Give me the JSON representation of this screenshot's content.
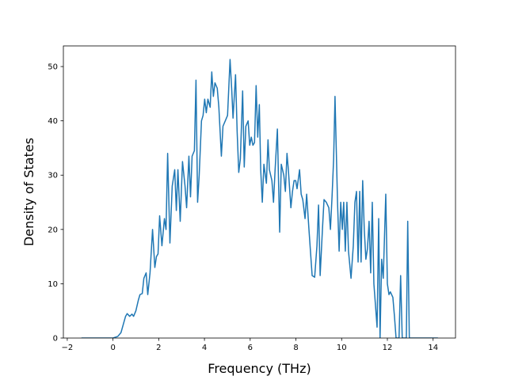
{
  "chart_data": {
    "type": "line",
    "xlabel": "Frequency (THz)",
    "ylabel": "Density of States",
    "xlim": [
      -2.17,
      14.98
    ],
    "ylim": [
      0,
      53.8
    ],
    "xticks": [
      {
        "value": -2,
        "label": "−2"
      },
      0,
      2,
      4,
      6,
      8,
      10,
      12,
      14
    ],
    "yticks": [
      0,
      10,
      20,
      30,
      40,
      50
    ],
    "grid": false,
    "series": [
      {
        "color": "#1f77b4",
        "x": [
          -1.38,
          0,
          0.21,
          0.35,
          0.45,
          0.55,
          0.62,
          0.73,
          0.83,
          0.9,
          1.0,
          1.11,
          1.18,
          1.28,
          1.35,
          1.45,
          1.52,
          1.62,
          1.73,
          1.83,
          1.9,
          1.97,
          2.04,
          2.14,
          2.25,
          2.32,
          2.39,
          2.49,
          2.59,
          2.7,
          2.77,
          2.84,
          2.94,
          3.04,
          3.15,
          3.22,
          3.32,
          3.39,
          3.46,
          3.56,
          3.63,
          3.7,
          3.77,
          3.87,
          3.94,
          4.01,
          4.08,
          4.15,
          4.25,
          4.32,
          4.39,
          4.46,
          4.56,
          4.63,
          4.74,
          4.81,
          4.91,
          5.01,
          5.12,
          5.19,
          5.25,
          5.36,
          5.43,
          5.5,
          5.57,
          5.67,
          5.74,
          5.81,
          5.91,
          5.98,
          6.05,
          6.12,
          6.19,
          6.26,
          6.33,
          6.4,
          6.46,
          6.53,
          6.6,
          6.71,
          6.78,
          6.84,
          6.95,
          7.02,
          7.09,
          7.19,
          7.29,
          7.36,
          7.47,
          7.54,
          7.61,
          7.67,
          7.78,
          7.85,
          7.92,
          7.99,
          8.05,
          8.16,
          8.23,
          8.3,
          8.4,
          8.47,
          8.57,
          8.71,
          8.82,
          8.92,
          8.99,
          9.06,
          9.16,
          9.23,
          9.33,
          9.44,
          9.51,
          9.58,
          9.65,
          9.71,
          9.82,
          9.89,
          9.96,
          10.03,
          10.09,
          10.16,
          10.23,
          10.3,
          10.41,
          10.51,
          10.58,
          10.65,
          10.72,
          10.79,
          10.85,
          10.92,
          10.99,
          11.06,
          11.13,
          11.2,
          11.27,
          11.34,
          11.41,
          11.48,
          11.55,
          11.62,
          11.68,
          11.75,
          11.82,
          11.93,
          12.0,
          12.07,
          12.13,
          12.24,
          12.31,
          12.38,
          12.51,
          12.58,
          12.65,
          12.83,
          12.89,
          12.96,
          13.07,
          14.21
        ],
        "values": [
          0,
          0,
          0.3,
          1,
          2.5,
          4,
          4.5,
          4,
          4.4,
          4,
          5,
          7,
          8,
          8.2,
          11,
          12,
          8,
          12,
          20,
          13,
          15,
          15.5,
          22.5,
          17,
          22,
          20,
          34,
          17.5,
          28,
          31,
          23.5,
          31,
          21.5,
          32.5,
          28,
          24,
          33.5,
          26,
          33.5,
          34.5,
          47.5,
          25,
          30,
          40,
          41,
          44,
          41.5,
          44,
          42.5,
          49,
          44.5,
          47,
          46,
          42.5,
          33.5,
          39,
          40,
          41,
          51.3,
          46,
          40.5,
          48.5,
          38,
          30.5,
          33,
          45.5,
          31.5,
          39,
          40,
          35.5,
          37,
          35.5,
          36,
          46.5,
          37,
          43,
          31,
          25,
          32,
          28.5,
          36.5,
          31,
          29,
          25,
          31,
          38.5,
          19.5,
          32,
          30,
          27,
          34,
          31,
          24,
          27,
          29,
          29,
          27.5,
          31,
          26.5,
          25.5,
          22,
          26.5,
          20,
          11.5,
          11.2,
          17,
          24.5,
          11.5,
          20,
          25.5,
          25,
          24,
          20,
          26,
          33,
          44.5,
          25,
          16,
          25,
          20,
          25,
          16,
          25,
          16,
          11,
          17,
          25,
          27,
          14,
          27,
          14,
          29,
          20,
          14.5,
          16.5,
          21.5,
          12,
          25,
          10,
          6,
          2,
          22,
          0,
          14.5,
          11,
          26.5,
          10,
          8,
          8.5,
          7.5,
          4,
          0,
          0,
          11.5,
          0,
          0,
          21.5,
          0,
          0,
          0
        ]
      }
    ]
  }
}
